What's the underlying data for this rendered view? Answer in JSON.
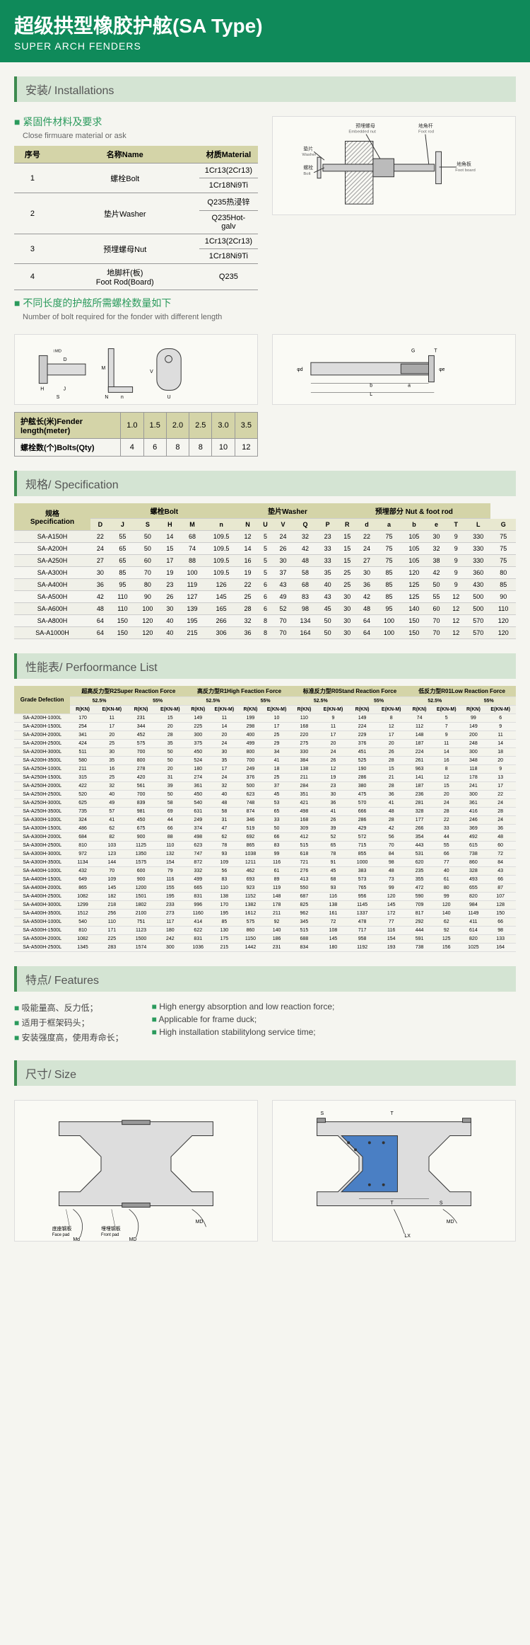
{
  "header": {
    "title_cn": "超级拱型橡胶护舷(SA Type)",
    "title_en": "SUPER ARCH FENDERS"
  },
  "sections": {
    "install": "安装/ Installations",
    "spec": "规格/ Specification",
    "perf": "性能表/ Perfoormance List",
    "features": "特点/ Features",
    "size": "尺寸/ Size"
  },
  "install": {
    "bullet1": "紧固件材料及要求",
    "bullet1_sub": "Close firmuare material or ask",
    "bullet2": "不同长度的护舷所需螺栓数量如下",
    "bullet2_sub": "Number of bolt required for the fonder with different length",
    "mat_headers": [
      "序号",
      "名称Name",
      "材质Material"
    ],
    "materials": [
      {
        "no": "1",
        "name": "螺栓Bolt",
        "mat": [
          "1Cr13(2Cr13)",
          "1Cr18Ni9Ti"
        ]
      },
      {
        "no": "2",
        "name": "垫片Washer",
        "mat": [
          "Q235热浸锌",
          "Q235Hot-galv"
        ]
      },
      {
        "no": "3",
        "name": "预埋螺母Nut",
        "mat": [
          "1Cr13(2Cr13)",
          "1Cr18Ni9Ti"
        ]
      },
      {
        "no": "4",
        "name": "地脚杆(板)\nFoot Rod(Board)",
        "mat": [
          "Q235"
        ]
      }
    ],
    "diagram_labels": {
      "washer": "垫片\nWasher",
      "bolt": "螺栓\nBolt",
      "embedded_nut": "预埋螺母\nEmbedded nut",
      "foot_rod": "地角杆\nFoot rod",
      "foot_board": "地角板\nFoot board"
    },
    "bolts_row1": [
      "护舷长(米)Fender length(meter)",
      "1.0",
      "1.5",
      "2.0",
      "2.5",
      "3.0",
      "3.5"
    ],
    "bolts_row2": [
      "螺栓数(个)Bolts(Qty)",
      "4",
      "6",
      "8",
      "8",
      "10",
      "12"
    ]
  },
  "spec": {
    "group_headers": [
      "规格\nSpecification",
      "螺栓Bolt",
      "垫片Washer",
      "预埋部分 Nut & foot rod"
    ],
    "cols": [
      "",
      "D",
      "J",
      "S",
      "H",
      "M",
      "n",
      "N",
      "U",
      "V",
      "Q",
      "P",
      "R",
      "d",
      "a",
      "b",
      "e",
      "T",
      "L",
      "G"
    ],
    "rows": [
      [
        "SA-A150H",
        22,
        55,
        50,
        14,
        68,
        109.5,
        12,
        5,
        24,
        32,
        23,
        15,
        22,
        75,
        105,
        30,
        9,
        330,
        75
      ],
      [
        "SA-A200H",
        24,
        65,
        50,
        15,
        74,
        109.5,
        14,
        5,
        26,
        42,
        33,
        15,
        24,
        75,
        105,
        32,
        9,
        330,
        75
      ],
      [
        "SA-A250H",
        27,
        65,
        60,
        17,
        88,
        109.5,
        16,
        5,
        30,
        48,
        33,
        15,
        27,
        75,
        105,
        38,
        9,
        330,
        75
      ],
      [
        "SA-A300H",
        30,
        85,
        70,
        19,
        100,
        109.5,
        19,
        5,
        37,
        58,
        35,
        25,
        30,
        85,
        120,
        42,
        9,
        360,
        80
      ],
      [
        "SA-A400H",
        36,
        95,
        80,
        23,
        119,
        126,
        22,
        6,
        43,
        68,
        40,
        25,
        36,
        85,
        125,
        50,
        9,
        430,
        85
      ],
      [
        "SA-A500H",
        42,
        110,
        90,
        26,
        127,
        145,
        25,
        6,
        49,
        83,
        43,
        30,
        42,
        85,
        125,
        55,
        12,
        500,
        90
      ],
      [
        "SA-A600H",
        48,
        110,
        100,
        30,
        139,
        165,
        28,
        6,
        52,
        98,
        45,
        30,
        48,
        95,
        140,
        60,
        12,
        500,
        110
      ],
      [
        "SA-A800H",
        64,
        150,
        120,
        40,
        195,
        266,
        32,
        8,
        70,
        134,
        50,
        30,
        64,
        100,
        150,
        70,
        12,
        570,
        120
      ],
      [
        "SA-A1000H",
        64,
        150,
        120,
        40,
        215,
        306,
        36,
        8,
        70,
        164,
        50,
        30,
        64,
        100,
        150,
        70,
        12,
        570,
        120
      ]
    ]
  },
  "perf": {
    "grade_label": "Grade Defection",
    "group_headers": [
      "超高反力型R2Super Reaction Force",
      "高反力型R1High Feaction Force",
      "标准反力型R0Stand Reaction Force",
      "低反力型R01Low Reaction Force"
    ],
    "sub_headers": [
      "52.5%",
      "55%"
    ],
    "unit_headers": [
      "R(KN)",
      "E(KN-M)"
    ],
    "rows": [
      [
        "SA-A200H-1000L",
        170,
        11,
        231,
        15,
        149,
        11,
        199,
        10,
        110,
        9,
        149,
        8,
        74,
        5,
        99,
        6
      ],
      [
        "SA-A200H-1500L",
        254,
        17,
        344,
        20,
        225,
        14,
        298,
        17,
        168,
        11,
        224,
        12,
        112,
        7,
        149,
        9
      ],
      [
        "SA-A200H-2000L",
        341,
        20,
        452,
        28,
        300,
        20,
        400,
        25,
        220,
        17,
        229,
        17,
        148,
        9,
        200,
        11
      ],
      [
        "SA-A200H-2500L",
        424,
        25,
        575,
        35,
        375,
        24,
        499,
        29,
        275,
        20,
        376,
        20,
        187,
        11,
        248,
        14
      ],
      [
        "SA-A200H-3000L",
        511,
        30,
        700,
        50,
        450,
        30,
        800,
        34,
        330,
        24,
        451,
        26,
        224,
        14,
        300,
        18
      ],
      [
        "SA-A200H-3500L",
        580,
        35,
        800,
        50,
        524,
        35,
        700,
        41,
        384,
        26,
        525,
        28,
        261,
        16,
        348,
        20
      ],
      [
        "SA-A250H-1000L",
        211,
        16,
        278,
        20,
        180,
        17,
        249,
        18,
        138,
        12,
        190,
        15,
        963,
        8,
        118,
        9
      ],
      [
        "SA-A250H-1500L",
        315,
        25,
        420,
        31,
        274,
        24,
        376,
        25,
        211,
        19,
        286,
        21,
        141,
        12,
        178,
        13
      ],
      [
        "SA-A250H-2000L",
        422,
        32,
        561,
        39,
        361,
        32,
        500,
        37,
        284,
        23,
        380,
        28,
        187,
        15,
        241,
        17
      ],
      [
        "SA-A250H-2500L",
        520,
        40,
        700,
        50,
        450,
        40,
        623,
        45,
        351,
        30,
        475,
        36,
        236,
        20,
        300,
        22
      ],
      [
        "SA-A250H-3000L",
        625,
        49,
        839,
        58,
        540,
        48,
        748,
        53,
        421,
        36,
        570,
        41,
        281,
        24,
        361,
        24
      ],
      [
        "SA-A250H-3500L",
        735,
        57,
        981,
        69,
        631,
        58,
        874,
        65,
        498,
        41,
        666,
        48,
        328,
        28,
        416,
        28
      ],
      [
        "SA-A300H-1000L",
        324,
        41,
        450,
        44,
        249,
        31,
        346,
        33,
        168,
        26,
        286,
        28,
        177,
        22,
        246,
        24
      ],
      [
        "SA-A300H-1500L",
        486,
        62,
        675,
        66,
        374,
        47,
        519,
        50,
        309,
        39,
        429,
        42,
        266,
        33,
        369,
        36
      ],
      [
        "SA-A300H-2000L",
        684,
        82,
        900,
        88,
        498,
        62,
        692,
        66,
        412,
        52,
        572,
        56,
        354,
        44,
        492,
        48
      ],
      [
        "SA-A300H-2500L",
        810,
        103,
        1125,
        110,
        623,
        78,
        865,
        83,
        515,
        65,
        715,
        70,
        443,
        55,
        615,
        60
      ],
      [
        "SA-A300H-3000L",
        972,
        123,
        1350,
        132,
        747,
        93,
        1038,
        99,
        618,
        78,
        855,
        84,
        531,
        66,
        738,
        72
      ],
      [
        "SA-A300H-3500L",
        1134,
        144,
        1575,
        154,
        872,
        109,
        1211,
        116,
        721,
        91,
        1000,
        98,
        620,
        77,
        860,
        84
      ],
      [
        "SA-A400H-1000L",
        432,
        70,
        600,
        79,
        332,
        56,
        462,
        61,
        276,
        45,
        383,
        48,
        235,
        40,
        328,
        43
      ],
      [
        "SA-A400H-1500L",
        649,
        109,
        900,
        116,
        499,
        83,
        693,
        89,
        413,
        68,
        573,
        73,
        355,
        61,
        493,
        66
      ],
      [
        "SA-A400H-2000L",
        865,
        145,
        1200,
        155,
        665,
        110,
        923,
        119,
        550,
        93,
        765,
        99,
        472,
        80,
        655,
        87
      ],
      [
        "SA-A400H-2500L",
        1082,
        182,
        1501,
        195,
        831,
        138,
        1152,
        148,
        687,
        116,
        956,
        120,
        590,
        99,
        820,
        107
      ],
      [
        "SA-A400H-3000L",
        1299,
        218,
        1802,
        233,
        996,
        170,
        1382,
        178,
        825,
        138,
        1145,
        145,
        709,
        120,
        984,
        128
      ],
      [
        "SA-A400H-3500L",
        1512,
        256,
        2100,
        273,
        1160,
        195,
        1612,
        211,
        962,
        161,
        1337,
        172,
        817,
        140,
        1149,
        150
      ],
      [
        "SA-A500H-1000L",
        540,
        110,
        751,
        117,
        414,
        85,
        575,
        92,
        345,
        72,
        478,
        77,
        292,
        62,
        411,
        66
      ],
      [
        "SA-A500H-1500L",
        810,
        171,
        1123,
        180,
        622,
        130,
        860,
        140,
        515,
        108,
        717,
        116,
        444,
        92,
        614,
        98
      ],
      [
        "SA-A500H-2000L",
        1082,
        225,
        1500,
        242,
        831,
        175,
        1150,
        186,
        688,
        145,
        958,
        154,
        591,
        125,
        820,
        133
      ],
      [
        "SA-A500H-2500L",
        1345,
        283,
        1574,
        300,
        1036,
        215,
        1442,
        231,
        834,
        180,
        1192,
        193,
        738,
        156,
        1025,
        164
      ]
    ]
  },
  "features": {
    "left": [
      "吸能量高、反力低；",
      "适用于框架码头；",
      "安装强度高，使用寿命长；"
    ],
    "right": [
      "High energy absorption and low reaction force;",
      "Applicable for frame duck;",
      "High installation stabilitylong service time;"
    ]
  },
  "size": {
    "labels": [
      "底座钢板\nFace pad",
      "埋埋钢板\nFront pad",
      "MD",
      "LX",
      "S",
      "T"
    ]
  }
}
